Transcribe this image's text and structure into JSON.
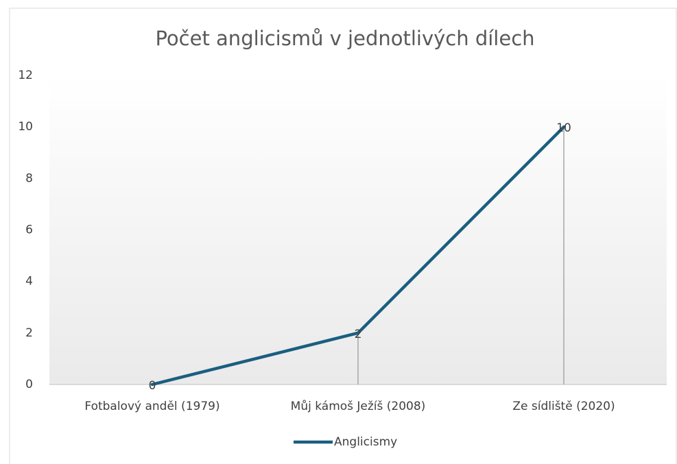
{
  "chart_data": {
    "type": "line",
    "title": "Počet anglicismů v jednotlivých dílech",
    "categories": [
      "Fotbalový anděl (1979)",
      "Můj kámoš Ježíš (2008)",
      "Ze sídliště (2020)"
    ],
    "series": [
      {
        "name": "Anglicismy",
        "color": "#1b5e80",
        "values": [
          0,
          2,
          10
        ]
      }
    ],
    "ylim": [
      0,
      12
    ],
    "yticks": [
      0,
      2,
      4,
      6,
      8,
      10,
      12
    ],
    "grid": false,
    "drop_lines": true,
    "data_labels": true,
    "legend": "bottom"
  }
}
